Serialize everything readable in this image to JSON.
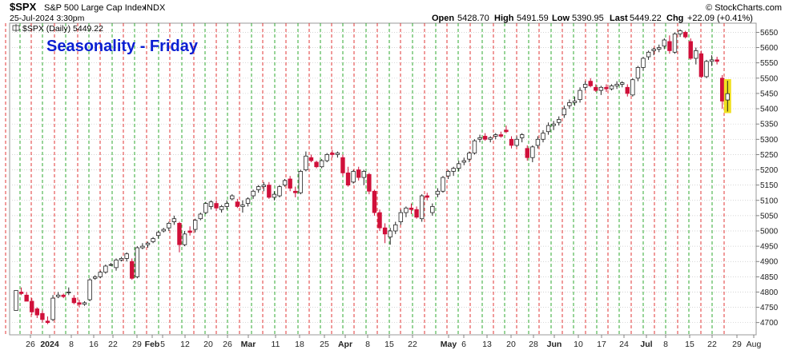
{
  "header": {
    "symbol": "$SPX",
    "name": "S&P 500 Large Cap Index",
    "exchange": "INDX",
    "datetime": "25-Jul-2024 3:30pm",
    "open_label": "Open",
    "open": "5428.70",
    "high_label": "High",
    "high": "5491.59",
    "low_label": "Low",
    "low": "5390.95",
    "last_label": "Last",
    "last": "5449.22",
    "chg_label": "Chg",
    "chg": "+22.09 (+0.41%)",
    "brand": "© StockCharts.com"
  },
  "legend": {
    "label": "$SPX (Daily) 5449.22"
  },
  "chart_data": {
    "type": "candlestick",
    "title": "Seasonality - Friday",
    "ylim": [
      4660,
      5680
    ],
    "yticks": [
      4700,
      4750,
      4800,
      4850,
      4900,
      4950,
      5000,
      5050,
      5100,
      5150,
      5200,
      5250,
      5300,
      5350,
      5400,
      5450,
      5500,
      5550,
      5600,
      5650
    ],
    "x_tick_labels": [
      "26",
      "2024",
      "8",
      "16",
      "22",
      "29",
      "Feb",
      "5",
      "12",
      "20",
      "26",
      "Mar",
      "11",
      "18",
      "25",
      "Apr",
      "8",
      "15",
      "22",
      "May",
      "6",
      "13",
      "20",
      "28",
      "Jun",
      "10",
      "17",
      "24",
      "Jul",
      "8",
      "15",
      "22",
      "29",
      "Aug"
    ],
    "grid": {
      "vertical": "dashed, alternating green and red",
      "horizontal": "dotted gray",
      "highlight": "yellow marker on last bar"
    },
    "colors": {
      "up": "#ffffff",
      "down": "#d0103a",
      "solid": "#000000",
      "green_grid": "#1aa01a",
      "red_grid": "#dd2222",
      "highlight": "#f0e020",
      "title": "#0a1ed2"
    },
    "candles_ohlc": [
      [
        4740,
        4805,
        4740,
        4805
      ],
      [
        4800,
        4815,
        4790,
        4795
      ],
      [
        4790,
        4800,
        4770,
        4770
      ],
      [
        4770,
        4780,
        4725,
        4735
      ],
      [
        4745,
        4750,
        4715,
        4725
      ],
      [
        4730,
        4740,
        4700,
        4710
      ],
      [
        4705,
        4720,
        4695,
        4700
      ],
      [
        4710,
        4790,
        4705,
        4780
      ],
      [
        4785,
        4800,
        4780,
        4790
      ],
      [
        4790,
        4795,
        4780,
        4785
      ],
      [
        4800,
        4815,
        4790,
        4800
      ],
      [
        4780,
        4790,
        4760,
        4765
      ],
      [
        4765,
        4775,
        4750,
        4760
      ],
      [
        4760,
        4770,
        4755,
        4765
      ],
      [
        4775,
        4845,
        4770,
        4840
      ],
      [
        4845,
        4855,
        4840,
        4850
      ],
      [
        4850,
        4870,
        4845,
        4865
      ],
      [
        4865,
        4890,
        4860,
        4885
      ],
      [
        4890,
        4895,
        4885,
        4890
      ],
      [
        4880,
        4910,
        4870,
        4905
      ],
      [
        4905,
        4915,
        4900,
        4910
      ],
      [
        4910,
        4930,
        4900,
        4925
      ],
      [
        4900,
        4910,
        4840,
        4845
      ],
      [
        4850,
        4950,
        4845,
        4945
      ],
      [
        4945,
        4960,
        4940,
        4950
      ],
      [
        4955,
        4965,
        4945,
        4960
      ],
      [
        4965,
        4980,
        4960,
        4975
      ],
      [
        4985,
        5000,
        4975,
        4995
      ],
      [
        5000,
        5010,
        4995,
        5005
      ],
      [
        5010,
        5030,
        5000,
        5025
      ],
      [
        5030,
        5050,
        5020,
        5040
      ],
      [
        5025,
        5030,
        4930,
        4955
      ],
      [
        4955,
        5000,
        4950,
        4990
      ],
      [
        5000,
        5015,
        4985,
        4995
      ],
      [
        5005,
        5040,
        4995,
        5035
      ],
      [
        5040,
        5060,
        5035,
        5055
      ],
      [
        5060,
        5095,
        5055,
        5090
      ],
      [
        5080,
        5100,
        5070,
        5095
      ],
      [
        5090,
        5100,
        5065,
        5075
      ],
      [
        5070,
        5085,
        5060,
        5080
      ],
      [
        5080,
        5100,
        5070,
        5090
      ],
      [
        5105,
        5120,
        5100,
        5115
      ],
      [
        5095,
        5105,
        5075,
        5080
      ],
      [
        5080,
        5100,
        5060,
        5085
      ],
      [
        5090,
        5110,
        5080,
        5105
      ],
      [
        5115,
        5135,
        5105,
        5130
      ],
      [
        5135,
        5150,
        5125,
        5145
      ],
      [
        5145,
        5160,
        5130,
        5150
      ],
      [
        5150,
        5160,
        5105,
        5110
      ],
      [
        5110,
        5130,
        5100,
        5120
      ],
      [
        5115,
        5150,
        5110,
        5145
      ],
      [
        5150,
        5170,
        5145,
        5165
      ],
      [
        5170,
        5180,
        5130,
        5140
      ],
      [
        5130,
        5145,
        5110,
        5125
      ],
      [
        5125,
        5200,
        5120,
        5195
      ],
      [
        5200,
        5260,
        5195,
        5245
      ],
      [
        5240,
        5250,
        5225,
        5230
      ],
      [
        5225,
        5230,
        5205,
        5210
      ],
      [
        5210,
        5235,
        5205,
        5230
      ],
      [
        5230,
        5255,
        5225,
        5250
      ],
      [
        5255,
        5265,
        5240,
        5250
      ],
      [
        5250,
        5260,
        5240,
        5255
      ],
      [
        5240,
        5250,
        5180,
        5190
      ],
      [
        5190,
        5210,
        5145,
        5150
      ],
      [
        5160,
        5200,
        5155,
        5195
      ],
      [
        5200,
        5210,
        5165,
        5175
      ],
      [
        5175,
        5200,
        5150,
        5195
      ],
      [
        5185,
        5190,
        5120,
        5130
      ],
      [
        5130,
        5135,
        5050,
        5060
      ],
      [
        5060,
        5070,
        5000,
        5010
      ],
      [
        5010,
        5025,
        4960,
        4990
      ],
      [
        4980,
        5010,
        4955,
        5000
      ],
      [
        5000,
        5030,
        4990,
        5020
      ],
      [
        5030,
        5070,
        5020,
        5060
      ],
      [
        5060,
        5080,
        5045,
        5075
      ],
      [
        5075,
        5090,
        5055,
        5070
      ],
      [
        5070,
        5080,
        5040,
        5045
      ],
      [
        5040,
        5120,
        5030,
        5115
      ],
      [
        5115,
        5125,
        5100,
        5110
      ],
      [
        5060,
        5090,
        5050,
        5080
      ],
      [
        5120,
        5140,
        5110,
        5130
      ],
      [
        5130,
        5180,
        5125,
        5175
      ],
      [
        5180,
        5200,
        5170,
        5195
      ],
      [
        5195,
        5210,
        5180,
        5205
      ],
      [
        5205,
        5230,
        5195,
        5220
      ],
      [
        5225,
        5240,
        5215,
        5230
      ],
      [
        5235,
        5260,
        5225,
        5255
      ],
      [
        5255,
        5300,
        5250,
        5295
      ],
      [
        5300,
        5315,
        5290,
        5305
      ],
      [
        5310,
        5320,
        5295,
        5300
      ],
      [
        5300,
        5310,
        5290,
        5305
      ],
      [
        5310,
        5320,
        5300,
        5315
      ],
      [
        5315,
        5325,
        5305,
        5310
      ],
      [
        5330,
        5345,
        5320,
        5325
      ],
      [
        5300,
        5310,
        5270,
        5280
      ],
      [
        5280,
        5310,
        5275,
        5300
      ],
      [
        5305,
        5320,
        5290,
        5315
      ],
      [
        5270,
        5280,
        5230,
        5240
      ],
      [
        5240,
        5280,
        5225,
        5275
      ],
      [
        5280,
        5310,
        5270,
        5300
      ],
      [
        5300,
        5330,
        5290,
        5320
      ],
      [
        5325,
        5355,
        5315,
        5345
      ],
      [
        5345,
        5360,
        5330,
        5350
      ],
      [
        5355,
        5375,
        5345,
        5365
      ],
      [
        5380,
        5410,
        5370,
        5400
      ],
      [
        5410,
        5430,
        5400,
        5420
      ],
      [
        5420,
        5440,
        5410,
        5425
      ],
      [
        5430,
        5470,
        5420,
        5460
      ],
      [
        5470,
        5490,
        5460,
        5480
      ],
      [
        5490,
        5500,
        5470,
        5475
      ],
      [
        5470,
        5480,
        5455,
        5460
      ],
      [
        5460,
        5475,
        5445,
        5470
      ],
      [
        5470,
        5480,
        5455,
        5465
      ],
      [
        5465,
        5480,
        5460,
        5475
      ],
      [
        5475,
        5490,
        5465,
        5480
      ],
      [
        5480,
        5490,
        5470,
        5485
      ],
      [
        5470,
        5480,
        5440,
        5450
      ],
      [
        5445,
        5500,
        5440,
        5495
      ],
      [
        5500,
        5540,
        5490,
        5535
      ],
      [
        5535,
        5570,
        5525,
        5565
      ],
      [
        5570,
        5590,
        5560,
        5585
      ],
      [
        5590,
        5600,
        5575,
        5595
      ],
      [
        5595,
        5610,
        5585,
        5600
      ],
      [
        5605,
        5630,
        5595,
        5625
      ],
      [
        5620,
        5640,
        5580,
        5590
      ],
      [
        5585,
        5650,
        5580,
        5645
      ],
      [
        5645,
        5660,
        5635,
        5655
      ],
      [
        5650,
        5655,
        5630,
        5635
      ],
      [
        5620,
        5630,
        5560,
        5565
      ],
      [
        5565,
        5600,
        5545,
        5590
      ],
      [
        5580,
        5590,
        5500,
        5505
      ],
      [
        5505,
        5560,
        5500,
        5555
      ],
      [
        5555,
        5575,
        5540,
        5560
      ],
      [
        5560,
        5570,
        5545,
        5555
      ],
      [
        5500,
        5510,
        5400,
        5425
      ],
      [
        5428.7,
        5491.59,
        5390.95,
        5449.22
      ]
    ]
  }
}
